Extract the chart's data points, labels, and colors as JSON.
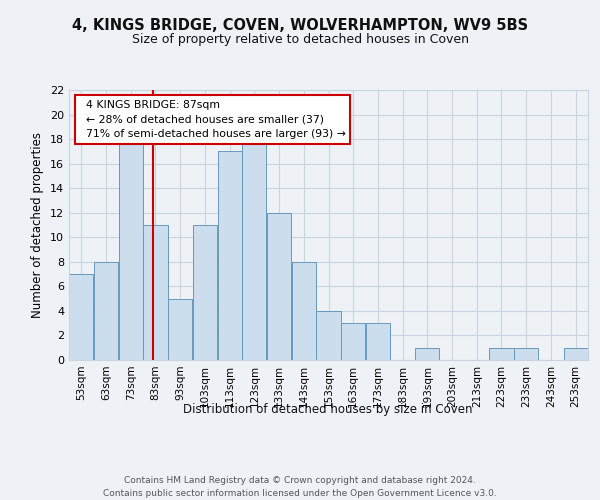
{
  "title": "4, KINGS BRIDGE, COVEN, WOLVERHAMPTON, WV9 5BS",
  "subtitle": "Size of property relative to detached houses in Coven",
  "xlabel": "Distribution of detached houses by size in Coven",
  "ylabel": "Number of detached properties",
  "bin_labels": [
    "53sqm",
    "63sqm",
    "73sqm",
    "83sqm",
    "93sqm",
    "103sqm",
    "113sqm",
    "123sqm",
    "133sqm",
    "143sqm",
    "153sqm",
    "163sqm",
    "173sqm",
    "183sqm",
    "193sqm",
    "203sqm",
    "213sqm",
    "223sqm",
    "233sqm",
    "243sqm",
    "253sqm"
  ],
  "bin_edges": [
    53,
    63,
    73,
    83,
    93,
    103,
    113,
    123,
    133,
    143,
    153,
    163,
    173,
    183,
    193,
    203,
    213,
    223,
    233,
    243,
    253
  ],
  "bar_heights": [
    7,
    8,
    18,
    11,
    5,
    11,
    17,
    18,
    12,
    8,
    4,
    3,
    3,
    0,
    1,
    0,
    0,
    1,
    1,
    0,
    1
  ],
  "bar_color": "#ccdded",
  "bar_edge_color": "#6699bb",
  "vline_x": 87,
  "vline_color": "#cc0000",
  "annotation_text": "  4 KINGS BRIDGE: 87sqm\n  ← 28% of detached houses are smaller (37)\n  71% of semi-detached houses are larger (93) →",
  "annotation_box_color": "#ffffff",
  "annotation_box_edge_color": "#cc0000",
  "ylim": [
    0,
    22
  ],
  "yticks": [
    0,
    2,
    4,
    6,
    8,
    10,
    12,
    14,
    16,
    18,
    20,
    22
  ],
  "footer_text": "Contains HM Land Registry data © Crown copyright and database right 2024.\nContains public sector information licensed under the Open Government Licence v3.0.",
  "bg_color": "#eef2f7",
  "plot_bg_color": "#eef2f7",
  "grid_color": "#c8d4e0"
}
